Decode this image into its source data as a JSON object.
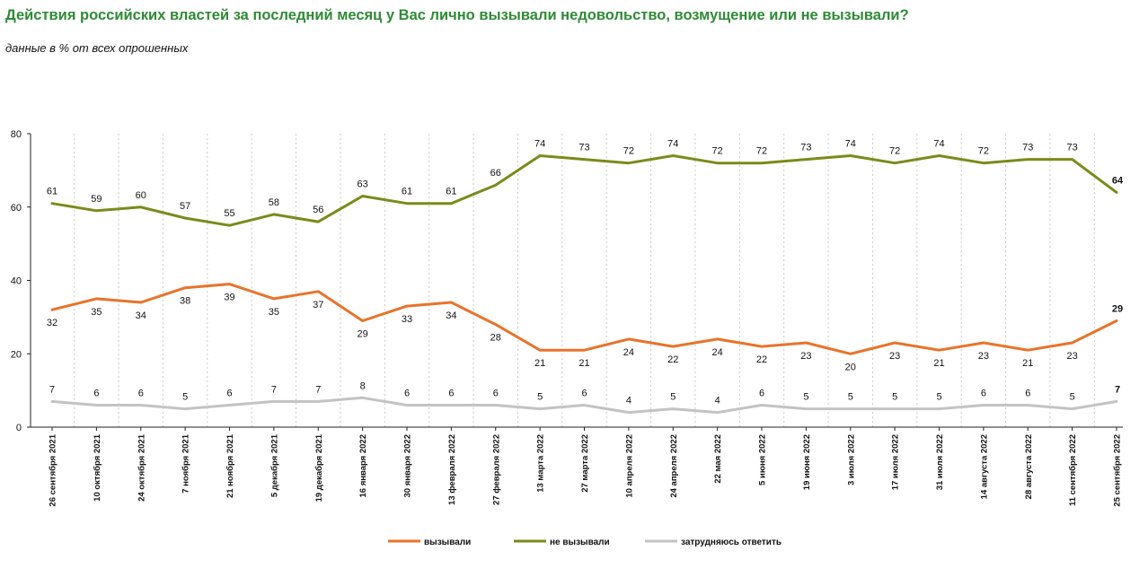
{
  "title": "Действия российских властей за последний месяц у Вас лично вызывали недовольство, возмущение или не вызывали?",
  "subtitle": "данные в % от всех опрошенных",
  "chart_data": {
    "type": "line",
    "title": "Действия российских властей за последний месяц у Вас лично вызывали недовольство, возмущение или не вызывали?",
    "subtitle": "данные в % от всех опрошенных",
    "ylim": [
      0,
      80
    ],
    "yticks": [
      0,
      20,
      40,
      60,
      80
    ],
    "grid": "vertical-dotted",
    "legend_position": "bottom",
    "categories": [
      "26 сентября 2021",
      "10 октября 2021",
      "24 октября 2021",
      "7 ноября 2021",
      "21 ноября 2021",
      "5 декабря 2021",
      "19 декабря 2021",
      "16 января 2022",
      "30 января 2022",
      "13 февраля 2022",
      "27 февраля 2022",
      "13 марта 2022",
      "27 марта 2022",
      "10 апреля 2022",
      "24 апреля 2022",
      "22 мая 2022",
      "5 июня 2022",
      "19 июня 2022",
      "3 июля 2022",
      "17 июля 2022",
      "31 июля 2022",
      "14 августа 2022",
      "28 августа 2022",
      "11 сентября 2022",
      "25 сентября 2022"
    ],
    "series": [
      {
        "name": "вызывали",
        "color": "#e8732a",
        "values": [
          32,
          35,
          34,
          38,
          39,
          35,
          37,
          29,
          33,
          34,
          28,
          21,
          21,
          24,
          22,
          24,
          22,
          23,
          20,
          23,
          21,
          23,
          21,
          23,
          29
        ]
      },
      {
        "name": "не вызывали",
        "color": "#7b8a1a",
        "values": [
          61,
          59,
          60,
          57,
          55,
          58,
          56,
          63,
          61,
          61,
          66,
          74,
          73,
          72,
          74,
          72,
          72,
          73,
          74,
          72,
          74,
          72,
          73,
          73,
          64
        ]
      },
      {
        "name": "затрудняюсь ответить",
        "color": "#c3c3c3",
        "values": [
          7,
          6,
          6,
          5,
          6,
          7,
          7,
          8,
          6,
          6,
          6,
          5,
          6,
          4,
          5,
          4,
          6,
          5,
          5,
          5,
          5,
          6,
          6,
          5,
          7
        ]
      }
    ]
  }
}
